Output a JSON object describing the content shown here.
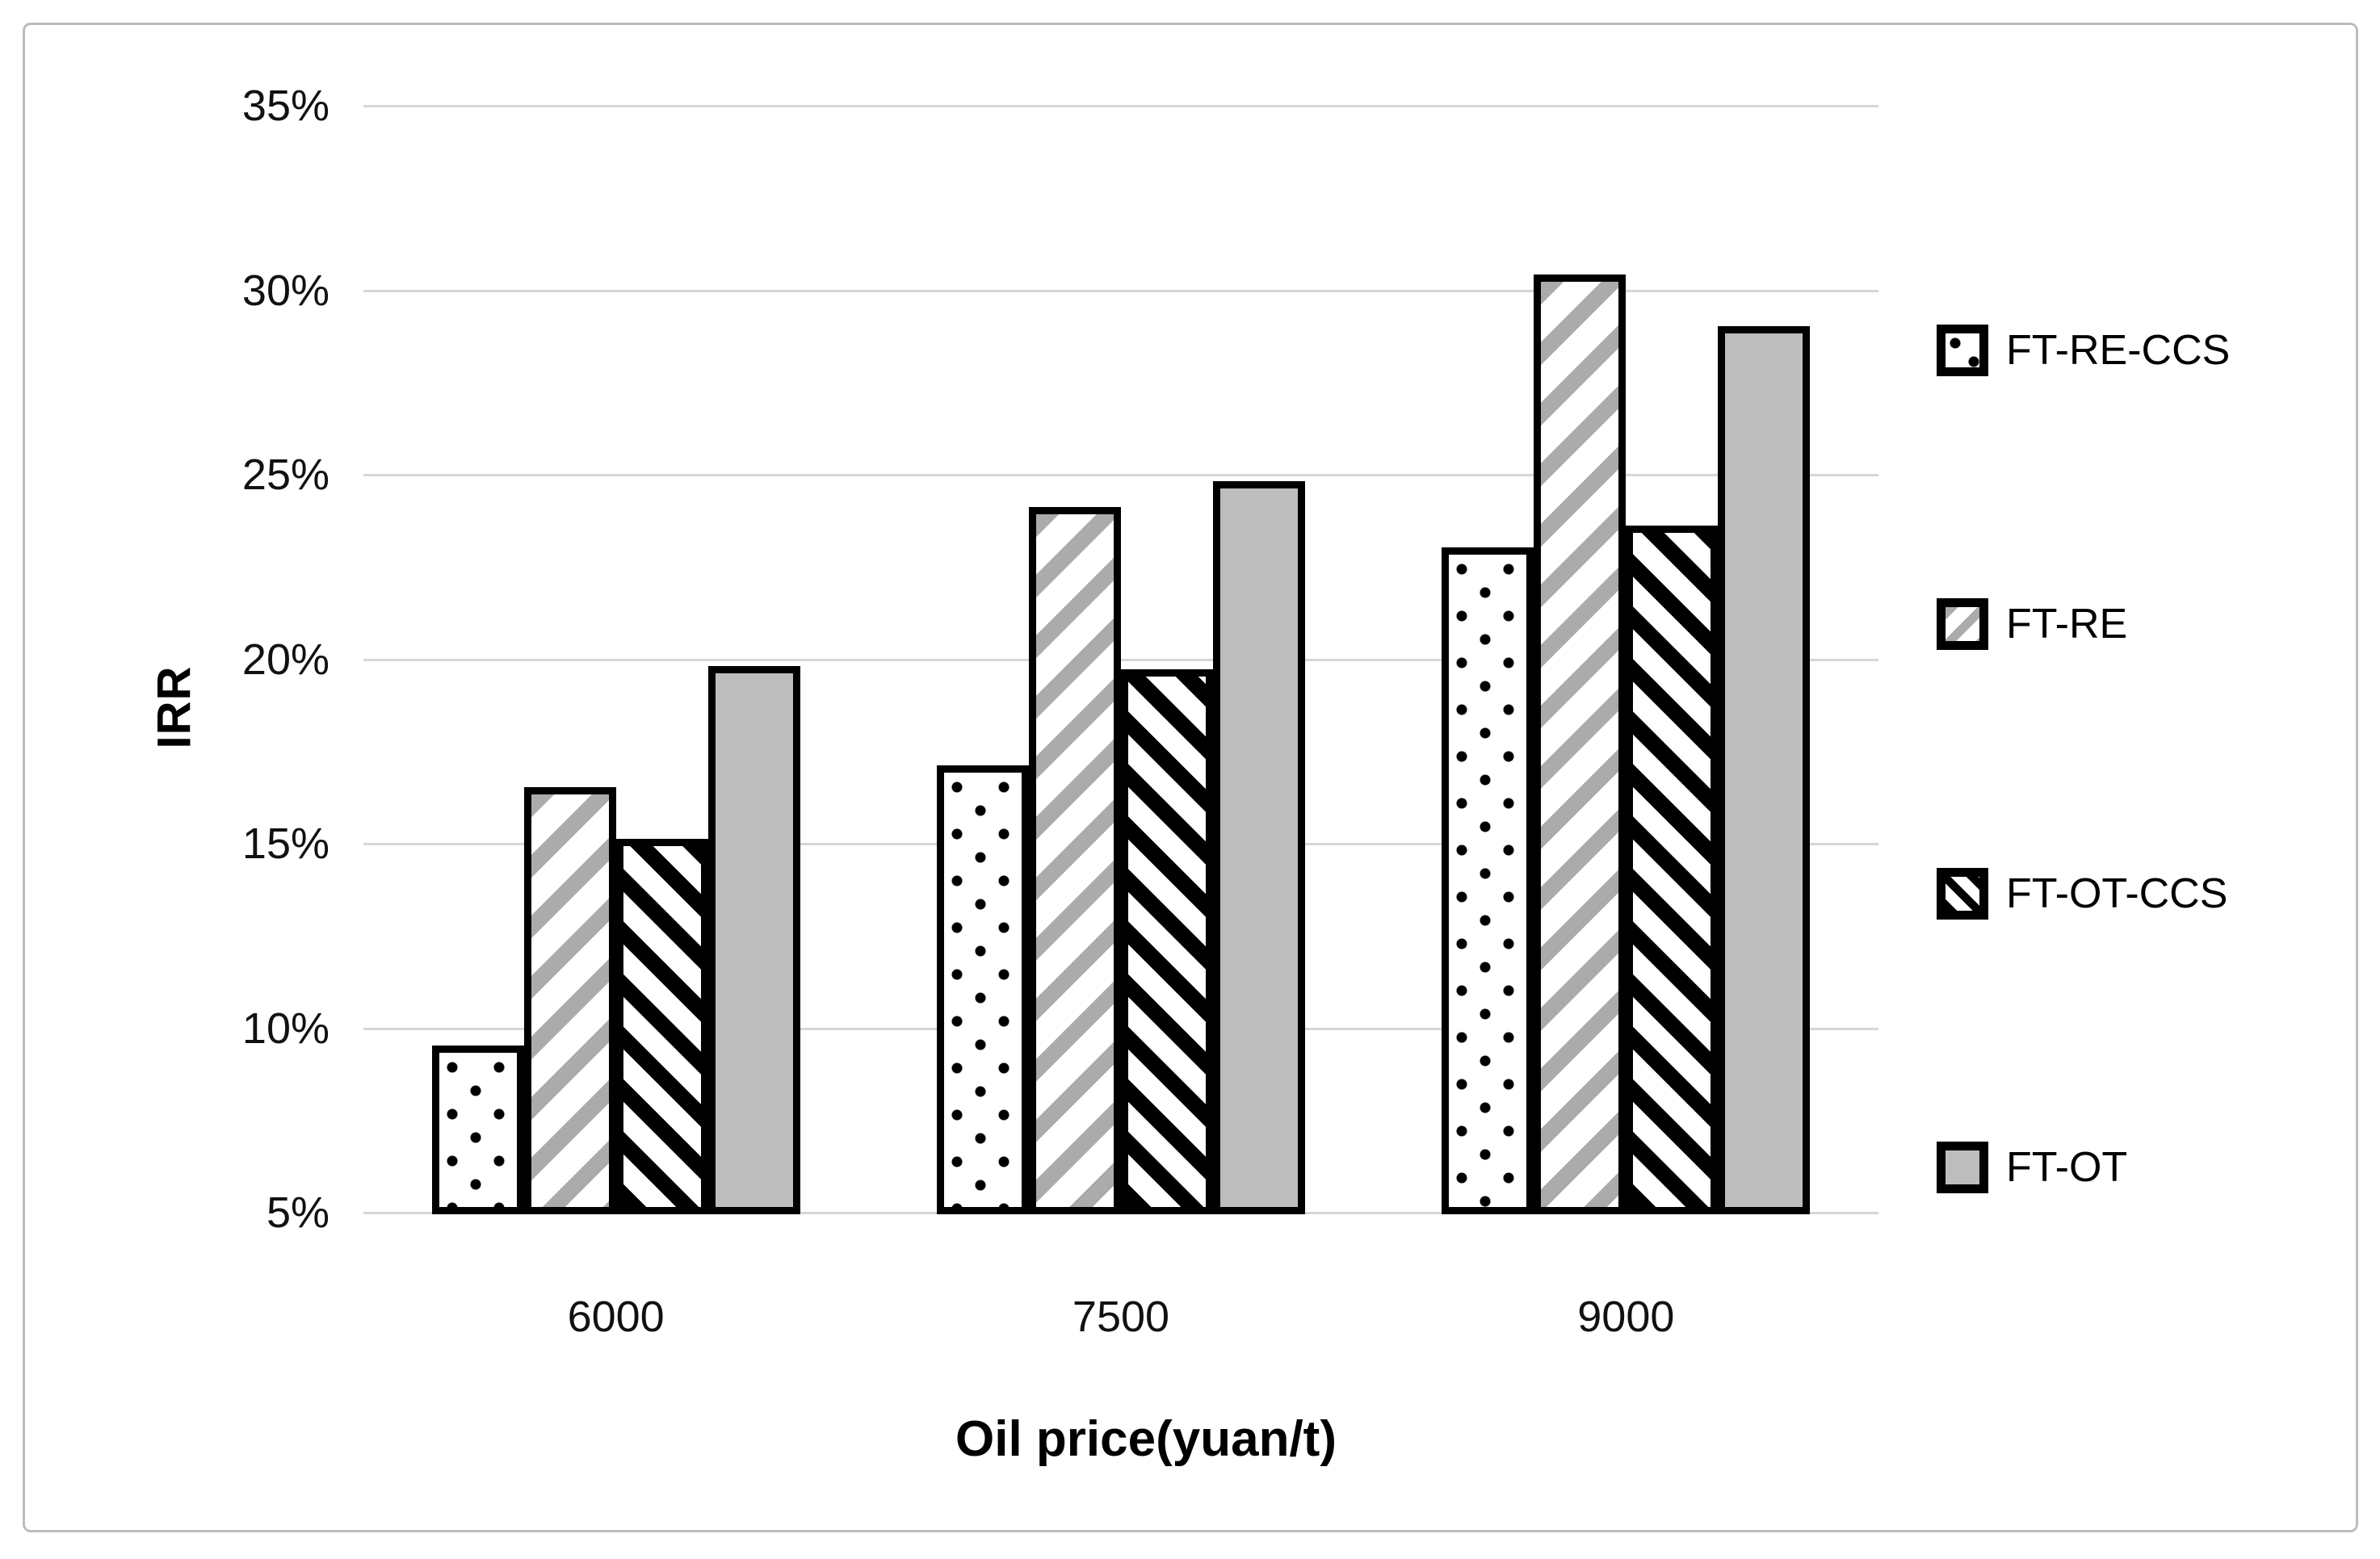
{
  "chart_data": {
    "type": "bar",
    "title": "",
    "xlabel": "Oil price(yuan/t)",
    "ylabel": "IRR",
    "categories": [
      "6000",
      "7500",
      "9000"
    ],
    "series": [
      {
        "name": "FT-RE-CCS",
        "pattern": "dots",
        "values": [
          9.5,
          17.1,
          23.0
        ]
      },
      {
        "name": "FT-RE",
        "pattern": "diag-up-gray",
        "values": [
          16.5,
          24.1,
          30.4
        ]
      },
      {
        "name": "FT-OT-CCS",
        "pattern": "diag-down-black",
        "values": [
          15.1,
          19.7,
          23.6
        ]
      },
      {
        "name": "FT-OT",
        "pattern": "solid-gray",
        "values": [
          19.8,
          24.8,
          29.0
        ]
      }
    ],
    "ylim": [
      5,
      35
    ],
    "ytick_labels": [
      "35%",
      "30%",
      "25%",
      "20%",
      "15%",
      "10%",
      "5%"
    ],
    "ytick_values": [
      35,
      30,
      25,
      20,
      15,
      10,
      5
    ],
    "grid": true,
    "legend_position": "right",
    "bars_start_at_axis_min": true
  },
  "colors": {
    "bar_border": "#000000",
    "solid_gray_fill": "#bdbdbd",
    "stripe_gray": "#ababab",
    "stripe_black": "#000000",
    "gridline": "#d6d6d6",
    "figure_border": "#bdbdbd",
    "text": "#111111"
  }
}
